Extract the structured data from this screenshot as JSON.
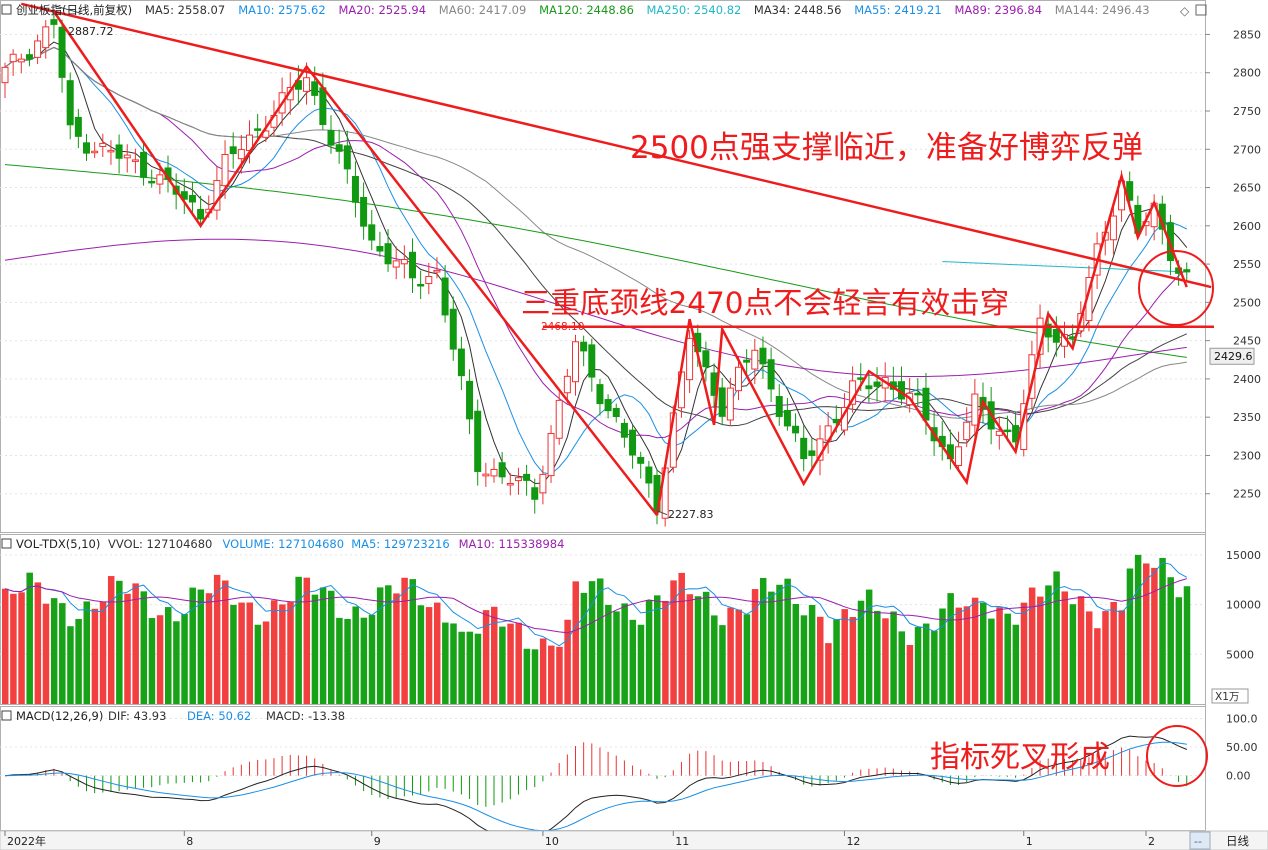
{
  "main_header": {
    "title": "创业板指(日线,前复权)",
    "ma_items": [
      {
        "label": "MA5: 2558.07",
        "color": "#333333"
      },
      {
        "label": "MA10: 2575.62",
        "color": "#1a8fe6"
      },
      {
        "label": "MA20: 2525.94",
        "color": "#9b1fae"
      },
      {
        "label": "MA60: 2417.09",
        "color": "#888888"
      },
      {
        "label": "MA120: 2448.86",
        "color": "#1a9a1a"
      },
      {
        "label": "MA250: 2540.82",
        "color": "#20b8c8"
      },
      {
        "label": "MA34: 2448.56",
        "color": "#333333"
      },
      {
        "label": "MA55: 2419.21",
        "color": "#1a8fe6"
      },
      {
        "label": "MA89: 2396.84",
        "color": "#9b1fae"
      },
      {
        "label": "MA144: 2496.43",
        "color": "#888888"
      }
    ]
  },
  "vol_header": {
    "title": "VOL-TDX(5,10)",
    "items": [
      {
        "label": "VVOL: 127104680",
        "color": "#333333"
      },
      {
        "label": "VOLUME: 127104680",
        "color": "#1a8fe6"
      },
      {
        "label": "MA5: 129723216",
        "color": "#1a8fe6"
      },
      {
        "label": "MA10: 115338984",
        "color": "#9b1fae"
      }
    ]
  },
  "macd_header": {
    "title": "MACD(12,26,9)",
    "items": [
      {
        "label": "DIF: 43.93",
        "color": "#333333"
      },
      {
        "label": "DEA: 50.62",
        "color": "#1a8fe6"
      },
      {
        "label": "MACD: -13.38",
        "color": "#333333"
      }
    ]
  },
  "x_axis": {
    "labels": [
      {
        "text": "2022年",
        "index": 0
      },
      {
        "text": "8",
        "index": 22
      },
      {
        "text": "9",
        "index": 45
      },
      {
        "text": "10",
        "index": 66
      },
      {
        "text": "11",
        "index": 82
      },
      {
        "text": "12",
        "index": 103
      },
      {
        "text": "1",
        "index": 125
      },
      {
        "text": "2",
        "index": 140
      }
    ],
    "corner_label": "--",
    "period_label": "日线"
  },
  "price_axis": {
    "ticks": [
      2250,
      2300,
      2350,
      2400,
      2450,
      2500,
      2550,
      2600,
      2650,
      2700,
      2750,
      2800,
      2850
    ],
    "last_price": "2429.6"
  },
  "vol_axis": {
    "ticks": [
      "5000",
      "10000",
      "15000"
    ],
    "unit": "X1万"
  },
  "macd_axis": {
    "ticks": [
      "0.00",
      "50.00",
      "100.0"
    ]
  },
  "annotations": {
    "high_label": "2887.72",
    "low_label": "2227.83",
    "neck_label": "2468.10",
    "text_support": "2500点强支撑临近，准备好博弈反弹",
    "text_neckline": "三重底颈线2470点不会轻言有效击穿",
    "text_macd": "指标死叉形成"
  },
  "chart_data": [
    {
      "type": "candlestick",
      "title": "创业板指(日线,前复权)",
      "ylim": [
        2200,
        2895
      ],
      "highlighted": {
        "high": 2887.72,
        "low": 2227.83,
        "neckline": 2468.1,
        "last": 2429.6
      },
      "key_closes": [
        {
          "index": 0,
          "value": 2800
        },
        {
          "index": 6,
          "value": 2865
        },
        {
          "index": 8,
          "value": 2720
        },
        {
          "index": 18,
          "value": 2670
        },
        {
          "index": 24,
          "value": 2615
        },
        {
          "index": 27,
          "value": 2680
        },
        {
          "index": 37,
          "value": 2795
        },
        {
          "index": 45,
          "value": 2580
        },
        {
          "index": 50,
          "value": 2530
        },
        {
          "index": 53,
          "value": 2540
        },
        {
          "index": 58,
          "value": 2290
        },
        {
          "index": 65,
          "value": 2250
        },
        {
          "index": 70,
          "value": 2445
        },
        {
          "index": 80,
          "value": 2240
        },
        {
          "index": 84,
          "value": 2455
        },
        {
          "index": 88,
          "value": 2365
        },
        {
          "index": 92,
          "value": 2440
        },
        {
          "index": 98,
          "value": 2290
        },
        {
          "index": 104,
          "value": 2385
        },
        {
          "index": 108,
          "value": 2400
        },
        {
          "index": 112,
          "value": 2365
        },
        {
          "index": 116,
          "value": 2295
        },
        {
          "index": 119,
          "value": 2365
        },
        {
          "index": 124,
          "value": 2320
        },
        {
          "index": 127,
          "value": 2470
        },
        {
          "index": 131,
          "value": 2450
        },
        {
          "index": 134,
          "value": 2565
        },
        {
          "index": 137,
          "value": 2660
        },
        {
          "index": 139,
          "value": 2590
        },
        {
          "index": 141,
          "value": 2620
        },
        {
          "index": 144,
          "value": 2545
        },
        {
          "index": 145,
          "value": 2530
        }
      ]
    },
    {
      "type": "bar",
      "title": "VOL-TDX(5,10)",
      "ylim": [
        0,
        17000
      ]
    },
    {
      "type": "line",
      "title": "MACD(12,26,9)",
      "ylim": [
        -95,
        120
      ],
      "series": [
        {
          "name": "DIF",
          "last": 43.93
        },
        {
          "name": "DEA",
          "last": 50.62
        },
        {
          "name": "MACD",
          "last": -13.38
        }
      ]
    }
  ]
}
